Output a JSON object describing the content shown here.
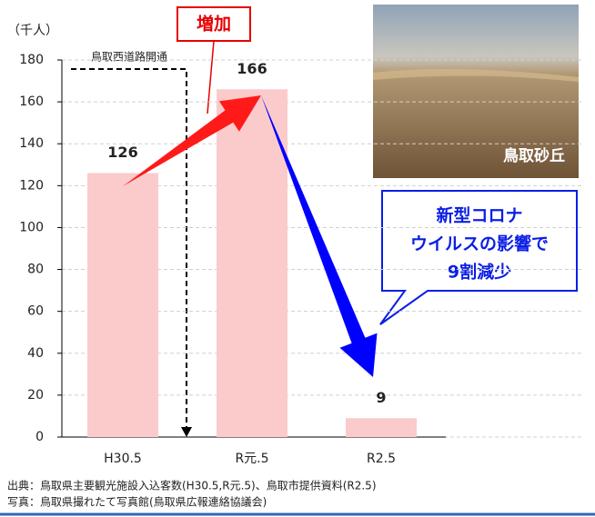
{
  "chart_data": {
    "type": "bar",
    "unit_label": "（千人）",
    "categories": [
      "H30.5",
      "R元.5",
      "R2.5"
    ],
    "values": [
      126,
      166,
      9
    ],
    "color": "#fbcaca",
    "ylim": [
      0,
      180
    ],
    "yticks": [
      0,
      20,
      40,
      60,
      80,
      100,
      120,
      140,
      160,
      180
    ],
    "grid": true,
    "road_opening": "鳥取西道路開通",
    "increase_label": "増加",
    "photo_caption": "鳥取砂丘",
    "callout_lines": [
      "新型コロナ",
      "ウイルスの影響で",
      "9割減少"
    ],
    "source_notes": [
      "出典：鳥取県主要観光施設入込客数(H30.5,R元.5)、鳥取市提供資料(R2.5)",
      "写真：鳥取県撮れたて写真館(鳥取県広報連絡協議会)"
    ]
  }
}
